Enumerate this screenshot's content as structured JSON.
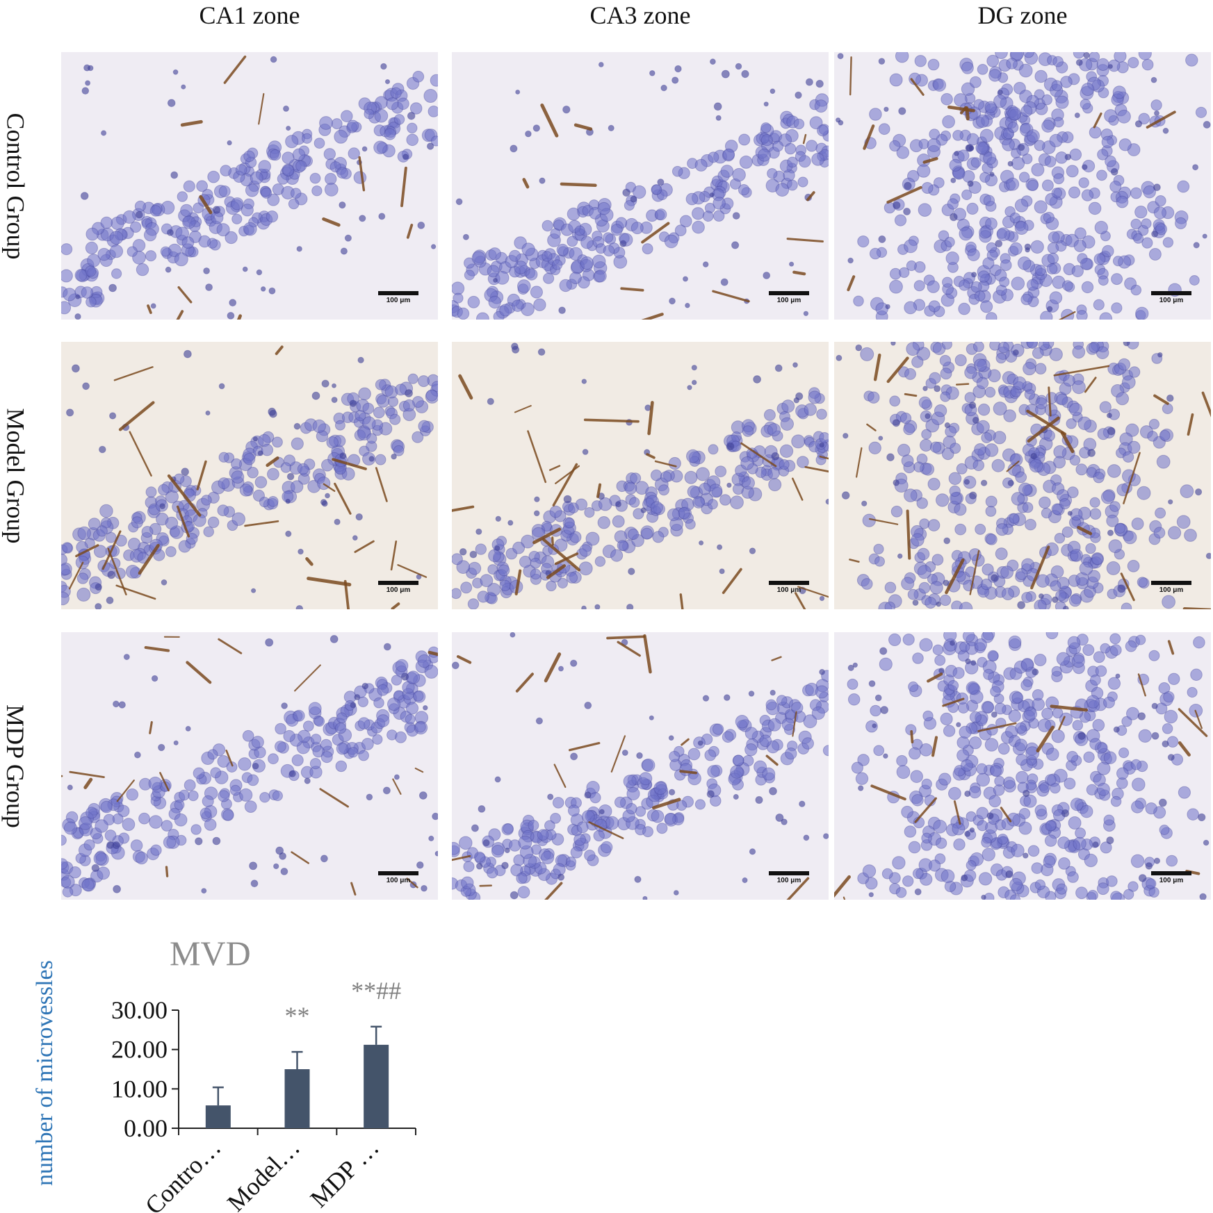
{
  "columns": [
    "CA1 zone",
    "CA3 zone",
    "DG zone"
  ],
  "rows": [
    "Control Group",
    "Model Group",
    "MDP Group"
  ],
  "scale_bar_label": "100 μm",
  "panel_kinds": [
    [
      "ca_control",
      "ca_control",
      "dg_control"
    ],
    [
      "ca_model",
      "ca_model",
      "dg_model"
    ],
    [
      "ca_mdp",
      "ca_mdp",
      "dg_mdp"
    ]
  ],
  "colors": {
    "tissue_background": "#efecf3",
    "nuclei": "#6f72c8",
    "nucleus_edge": "#3e3f96",
    "vessel_stain": "#7a4a1e",
    "bar_fill": "#44546a",
    "axis": "#222222",
    "title_gray": "#8c8c8c",
    "ylabel_blue": "#2e75b6"
  },
  "chart_data": {
    "type": "bar",
    "title": "MVD",
    "ylabel": "number of microvessles",
    "categories": [
      "Contro…",
      "Model…",
      "MDP …"
    ],
    "values": [
      5.8,
      15.0,
      21.2
    ],
    "error": [
      4.6,
      4.4,
      4.6
    ],
    "annotations": [
      "",
      "**",
      "**##"
    ],
    "yticks": [
      "0.00",
      "10.00",
      "20.00",
      "30.00"
    ],
    "ylim": [
      0,
      30
    ],
    "grid": false
  }
}
